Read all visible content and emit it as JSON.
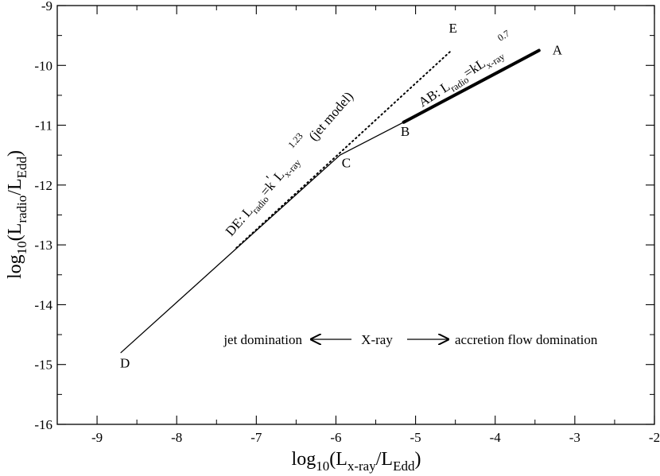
{
  "chart_data": {
    "type": "line",
    "xlabel": {
      "base": "log",
      "sub1": "10",
      "mid": "(L",
      "sub2": "x-ray",
      "mid2": "/L",
      "sub3": "Edd",
      "end": ")"
    },
    "ylabel": {
      "base": "log",
      "sub1": "10",
      "mid": "(L",
      "sub2": "radio",
      "mid2": "/L",
      "sub3": "Edd",
      "end": ")"
    },
    "xlim": [
      -9.5,
      -2
    ],
    "ylim": [
      -16,
      -9
    ],
    "x_ticks": [
      -9,
      -8,
      -7,
      -6,
      -5,
      -4,
      -3,
      -2
    ],
    "x_tick_labels": [
      "-9",
      "-8",
      "-7",
      "-6",
      "-5",
      "-4",
      "-3",
      "-2"
    ],
    "y_ticks": [
      -16,
      -15,
      -14,
      -13,
      -12,
      -11,
      -10,
      -9
    ],
    "y_tick_labels": [
      "-16",
      "-15",
      "-14",
      "-13",
      "-12",
      "-11",
      "-10",
      "-9"
    ],
    "grid": false,
    "series": [
      {
        "style": "thin-solid",
        "x": [
          -8.7,
          -5.95
        ],
        "y": [
          -14.8,
          -11.5
        ]
      },
      {
        "style": "thin-solid",
        "x": [
          -5.95,
          -5.15
        ],
        "y": [
          -11.5,
          -10.95
        ]
      },
      {
        "style": "thick-solid",
        "x": [
          -5.15,
          -3.45
        ],
        "y": [
          -10.95,
          -9.75
        ]
      },
      {
        "style": "dotted",
        "x": [
          -7.25,
          -4.55
        ],
        "y": [
          -13.05,
          -9.75
        ]
      }
    ],
    "points": [
      {
        "label": "A",
        "x": -3.22,
        "y": -9.82
      },
      {
        "label": "B",
        "x": -5.13,
        "y": -11.18
      },
      {
        "label": "C",
        "x": -5.87,
        "y": -11.7
      },
      {
        "label": "D",
        "x": -8.65,
        "y": -15.05
      },
      {
        "label": "E",
        "x": -4.53,
        "y": -9.45
      }
    ],
    "annotations": {
      "de": {
        "prefix": "DE: L",
        "sub": "radio",
        "mid": "=k",
        "prime": "'",
        "mid2": " L",
        "sub2": "x-ray",
        "sup": "1.23",
        "suffix": " (jet model)"
      },
      "ab": {
        "prefix": "AB: L",
        "sub": "radio",
        "mid": "=kL",
        "sub2": "x-ray",
        "sup": "0.7"
      },
      "bottom": {
        "left": "jet domination",
        "center": "X-ray",
        "right": "accretion flow domination"
      }
    }
  }
}
